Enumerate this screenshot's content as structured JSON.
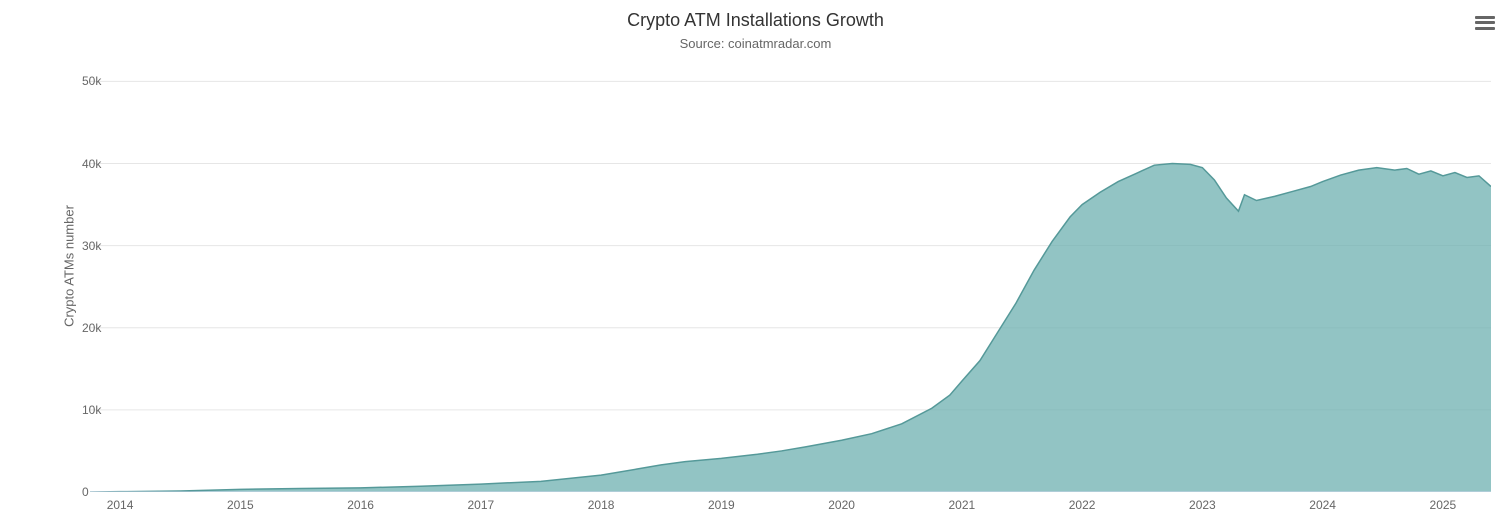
{
  "chart": {
    "type": "area",
    "title": "Crypto ATM Installations Growth",
    "subtitle": "Source: coinatmradar.com",
    "y_axis_label": "Crypto ATMs number",
    "title_fontsize": 18,
    "subtitle_fontsize": 13,
    "label_fontsize": 13,
    "tick_fontsize": 12,
    "background_color": "#ffffff",
    "grid_color": "#e6e6e6",
    "axis_line_color": "#ccd6eb",
    "title_color": "#333333",
    "subtitle_color": "#666666",
    "tick_color": "#666666",
    "series_fill_color": "#6eb0b0",
    "series_fill_opacity": 0.75,
    "series_line_color": "#559999",
    "series_line_width": 1.5,
    "x_range": [
      2013.75,
      2025.4
    ],
    "y_range": [
      0,
      52000
    ],
    "y_ticks": [
      0,
      10000,
      20000,
      30000,
      40000,
      50000
    ],
    "y_tick_labels": [
      "0",
      "10k",
      "20k",
      "30k",
      "40k",
      "50k"
    ],
    "x_ticks": [
      2014,
      2015,
      2016,
      2017,
      2018,
      2019,
      2020,
      2021,
      2022,
      2023,
      2024,
      2025
    ],
    "x_tick_labels": [
      "2014",
      "2015",
      "2016",
      "2017",
      "2018",
      "2019",
      "2020",
      "2021",
      "2022",
      "2023",
      "2024",
      "2025"
    ],
    "data": [
      {
        "x": 2013.75,
        "y": 5
      },
      {
        "x": 2014.0,
        "y": 40
      },
      {
        "x": 2014.5,
        "y": 120
      },
      {
        "x": 2015.0,
        "y": 320
      },
      {
        "x": 2015.5,
        "y": 420
      },
      {
        "x": 2016.0,
        "y": 500
      },
      {
        "x": 2016.5,
        "y": 700
      },
      {
        "x": 2017.0,
        "y": 960
      },
      {
        "x": 2017.5,
        "y": 1300
      },
      {
        "x": 2018.0,
        "y": 2050
      },
      {
        "x": 2018.3,
        "y": 2800
      },
      {
        "x": 2018.5,
        "y": 3300
      },
      {
        "x": 2018.7,
        "y": 3700
      },
      {
        "x": 2019.0,
        "y": 4100
      },
      {
        "x": 2019.3,
        "y": 4600
      },
      {
        "x": 2019.5,
        "y": 5000
      },
      {
        "x": 2019.7,
        "y": 5500
      },
      {
        "x": 2020.0,
        "y": 6300
      },
      {
        "x": 2020.25,
        "y": 7100
      },
      {
        "x": 2020.5,
        "y": 8300
      },
      {
        "x": 2020.75,
        "y": 10200
      },
      {
        "x": 2020.9,
        "y": 11800
      },
      {
        "x": 2021.0,
        "y": 13500
      },
      {
        "x": 2021.15,
        "y": 16000
      },
      {
        "x": 2021.3,
        "y": 19500
      },
      {
        "x": 2021.45,
        "y": 23000
      },
      {
        "x": 2021.6,
        "y": 27000
      },
      {
        "x": 2021.75,
        "y": 30500
      },
      {
        "x": 2021.9,
        "y": 33500
      },
      {
        "x": 2022.0,
        "y": 35000
      },
      {
        "x": 2022.15,
        "y": 36500
      },
      {
        "x": 2022.3,
        "y": 37800
      },
      {
        "x": 2022.45,
        "y": 38800
      },
      {
        "x": 2022.6,
        "y": 39800
      },
      {
        "x": 2022.75,
        "y": 40000
      },
      {
        "x": 2022.9,
        "y": 39900
      },
      {
        "x": 2023.0,
        "y": 39500
      },
      {
        "x": 2023.1,
        "y": 38000
      },
      {
        "x": 2023.2,
        "y": 35800
      },
      {
        "x": 2023.3,
        "y": 34200
      },
      {
        "x": 2023.35,
        "y": 36200
      },
      {
        "x": 2023.45,
        "y": 35500
      },
      {
        "x": 2023.6,
        "y": 36000
      },
      {
        "x": 2023.75,
        "y": 36600
      },
      {
        "x": 2023.9,
        "y": 37200
      },
      {
        "x": 2024.0,
        "y": 37800
      },
      {
        "x": 2024.15,
        "y": 38600
      },
      {
        "x": 2024.3,
        "y": 39200
      },
      {
        "x": 2024.45,
        "y": 39500
      },
      {
        "x": 2024.6,
        "y": 39200
      },
      {
        "x": 2024.7,
        "y": 39400
      },
      {
        "x": 2024.8,
        "y": 38700
      },
      {
        "x": 2024.9,
        "y": 39100
      },
      {
        "x": 2025.0,
        "y": 38500
      },
      {
        "x": 2025.1,
        "y": 38900
      },
      {
        "x": 2025.2,
        "y": 38300
      },
      {
        "x": 2025.3,
        "y": 38500
      },
      {
        "x": 2025.4,
        "y": 37200
      }
    ]
  },
  "menu_icon_color": "#666666"
}
